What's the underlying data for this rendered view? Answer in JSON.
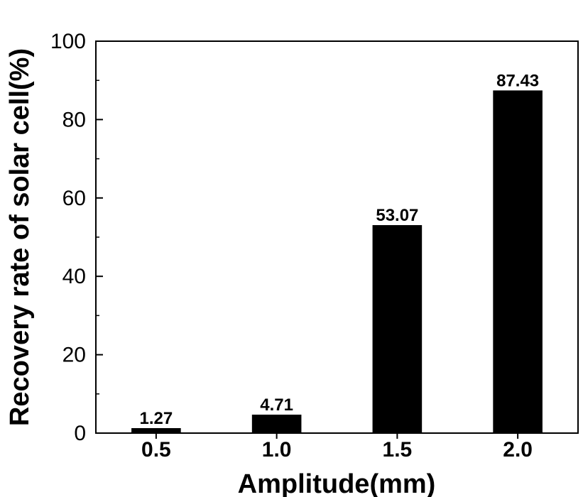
{
  "chart_data": {
    "type": "bar",
    "categories": [
      "0.5",
      "1.0",
      "1.5",
      "2.0"
    ],
    "values": [
      1.27,
      4.71,
      53.07,
      87.43
    ],
    "data_labels": [
      "1.27",
      "4.71",
      "53.07",
      "87.43"
    ],
    "xlabel": "Amplitude(mm)",
    "ylabel": "Recovery rate of solar cell(%)",
    "ylim": [
      0,
      100
    ],
    "yticks": [
      0,
      20,
      40,
      60,
      80,
      100
    ],
    "ytick_labels": [
      "0",
      "20",
      "40",
      "60",
      "80",
      "100"
    ],
    "grid": false,
    "legend": "none",
    "bar_color": "#000000"
  }
}
